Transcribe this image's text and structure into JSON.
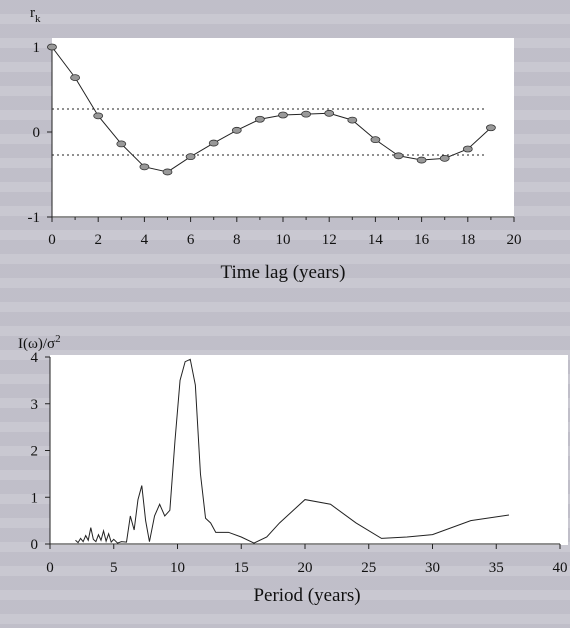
{
  "chart_data": [
    {
      "type": "line",
      "ylabel": "r",
      "ylabel_sub": "k",
      "xlabel": "Time lag (years)",
      "xlim": [
        0,
        20
      ],
      "ylim": [
        -1,
        1
      ],
      "xticks": [
        "0",
        "2",
        "4",
        "6",
        "8",
        "10",
        "12",
        "14",
        "16",
        "18",
        "20"
      ],
      "yticks": [
        "1",
        "0",
        "-1"
      ],
      "confidence_band": [
        0.27,
        -0.27
      ],
      "x": [
        0,
        1,
        2,
        3,
        4,
        5,
        6,
        7,
        8,
        9,
        10,
        11,
        12,
        13,
        14,
        15,
        16,
        17,
        18,
        19
      ],
      "y": [
        1.0,
        0.64,
        0.19,
        -0.14,
        -0.41,
        -0.47,
        -0.29,
        -0.13,
        0.02,
        0.15,
        0.2,
        0.21,
        0.22,
        0.14,
        -0.09,
        -0.28,
        -0.33,
        -0.31,
        -0.2,
        0.05
      ],
      "grid": false
    },
    {
      "type": "line",
      "ylabel": "I(ω)/σ",
      "ylabel_sup": "2",
      "xlabel": "Period (years)",
      "xlim": [
        0,
        40
      ],
      "ylim": [
        0,
        4
      ],
      "xticks": [
        "0",
        "5",
        "10",
        "15",
        "20",
        "25",
        "30",
        "35",
        "40"
      ],
      "yticks": [
        "0",
        "1",
        "2",
        "3",
        "4"
      ],
      "x": [
        2.0,
        2.2,
        2.4,
        2.6,
        2.8,
        3.0,
        3.2,
        3.4,
        3.6,
        3.8,
        4.0,
        4.2,
        4.4,
        4.6,
        4.8,
        5.0,
        5.3,
        5.6,
        6.0,
        6.3,
        6.6,
        6.9,
        7.2,
        7.5,
        7.8,
        8.2,
        8.6,
        9.0,
        9.4,
        9.8,
        10.2,
        10.6,
        11.0,
        11.4,
        11.8,
        12.2,
        12.6,
        13.0,
        13.5,
        14.0,
        15.0,
        16.0,
        17.0,
        18.0,
        20.0,
        22.0,
        24.0,
        26.0,
        28.0,
        30.0,
        33.0,
        36.0
      ],
      "y": [
        0.08,
        0.03,
        0.12,
        0.05,
        0.18,
        0.08,
        0.35,
        0.1,
        0.05,
        0.2,
        0.08,
        0.28,
        0.06,
        0.22,
        0.04,
        0.1,
        0.02,
        0.05,
        0.04,
        0.6,
        0.3,
        0.95,
        1.25,
        0.5,
        0.05,
        0.6,
        0.85,
        0.6,
        0.72,
        2.2,
        3.5,
        3.9,
        3.95,
        3.4,
        1.5,
        0.55,
        0.45,
        0.25,
        0.25,
        0.25,
        0.15,
        0.02,
        0.15,
        0.45,
        0.95,
        0.85,
        0.45,
        0.12,
        0.15,
        0.2,
        0.5,
        0.62
      ],
      "grid": false
    }
  ]
}
